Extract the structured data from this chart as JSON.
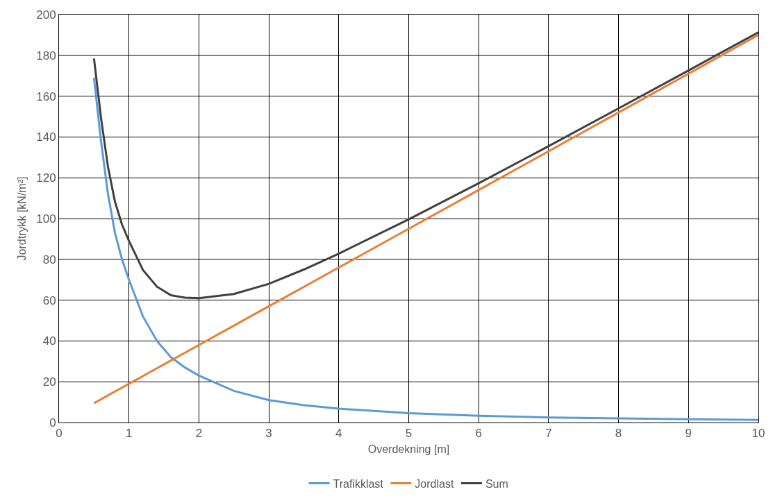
{
  "chart_data": {
    "type": "line",
    "xlabel": "Overdekning [m]",
    "ylabel": "Jordtrykk [kN/m²]",
    "x": [
      0.5,
      0.6,
      0.7,
      0.8,
      0.9,
      1.0,
      1.2,
      1.4,
      1.6,
      1.8,
      2.0,
      2.5,
      3.0,
      3.5,
      4.0,
      5.0,
      6.0,
      7.0,
      8.0,
      9.0,
      10.0
    ],
    "series": [
      {
        "name": "Trafikklast",
        "color": "#5b9bd5",
        "values": [
          169,
          138,
          112,
          93,
          80,
          70,
          52,
          40,
          32,
          27,
          23,
          15.5,
          11,
          8.5,
          6.8,
          4.6,
          3.3,
          2.5,
          2.0,
          1.6,
          1.3
        ]
      },
      {
        "name": "Jordlast",
        "color": "#ed7d31",
        "values": [
          9.5,
          11.4,
          13.3,
          15.2,
          17.1,
          19,
          22.8,
          26.6,
          30.4,
          34.2,
          38,
          47.5,
          57,
          66.5,
          76,
          95,
          114,
          133,
          152,
          171,
          190
        ]
      },
      {
        "name": "Sum",
        "color": "#404040",
        "values": [
          178.5,
          149.4,
          125.3,
          108.2,
          97.1,
          89,
          74.8,
          66.6,
          62.4,
          61.2,
          61,
          63,
          68,
          75,
          82.8,
          99.6,
          117.3,
          135.5,
          154,
          172.6,
          191.3
        ]
      }
    ],
    "xlim": [
      0,
      10
    ],
    "xticks": [
      0,
      1,
      2,
      3,
      4,
      5,
      6,
      7,
      8,
      9,
      10
    ],
    "ylim": [
      0,
      200
    ],
    "yticks": [
      0,
      20,
      40,
      60,
      80,
      100,
      120,
      140,
      160,
      180,
      200
    ],
    "grid": true,
    "legend": "bottom",
    "marker": "none",
    "line_style": "solid"
  }
}
